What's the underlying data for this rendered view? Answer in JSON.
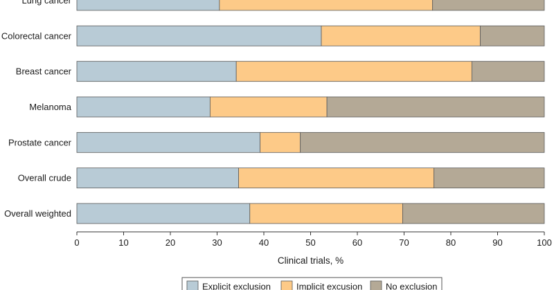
{
  "chart_data": {
    "type": "bar",
    "orientation": "horizontal",
    "stacked": true,
    "categories": [
      "Lung cancer",
      "Colorectal cancer",
      "Breast cancer",
      "Melanoma",
      "Prostate cancer",
      "Overall crude",
      "Overall weighted"
    ],
    "series": [
      {
        "name": "Explicit exclusion",
        "color": "#b8cbd6",
        "values": [
          30.5,
          52.3,
          34.1,
          28.5,
          39.2,
          34.6,
          37.0
        ]
      },
      {
        "name": "Implicit excusion",
        "color": "#fdca88",
        "values": [
          45.6,
          34.0,
          50.4,
          25.0,
          8.6,
          41.8,
          32.7
        ]
      },
      {
        "name": "No exclusion",
        "color": "#b4a996",
        "values": [
          23.9,
          13.7,
          15.5,
          46.5,
          52.2,
          23.6,
          30.3
        ]
      }
    ],
    "xlabel": "Clinical trials, %",
    "ylabel": "",
    "xlim": [
      0,
      100
    ],
    "xticks": [
      "0",
      "10",
      "20",
      "30",
      "40",
      "50",
      "60",
      "70",
      "80",
      "90",
      "100"
    ],
    "legend_position": "bottom",
    "grid": false
  }
}
